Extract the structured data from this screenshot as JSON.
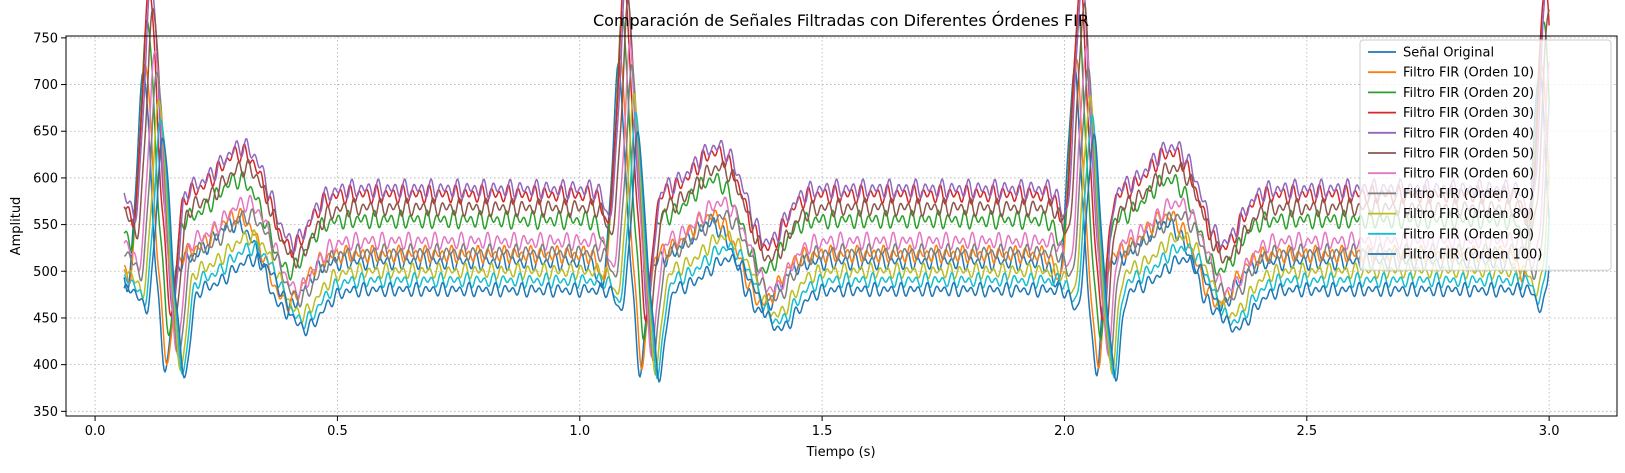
{
  "chart_data": {
    "type": "line",
    "title": "Comparación de Señales Filtradas con Diferentes Órdenes FIR",
    "xlabel": "Tiempo (s)",
    "ylabel": "Amplitud",
    "xlim": [
      -0.06,
      3.14
    ],
    "ylim": [
      345,
      752
    ],
    "xticks": [
      0.0,
      0.5,
      1.0,
      1.5,
      2.0,
      2.5,
      3.0
    ],
    "xtick_labels": [
      "0.0",
      "0.5",
      "1.0",
      "1.5",
      "2.0",
      "2.5",
      "3.0"
    ],
    "yticks": [
      350,
      400,
      450,
      500,
      550,
      600,
      650,
      700,
      750
    ],
    "ytick_labels": [
      "350",
      "400",
      "450",
      "500",
      "550",
      "600",
      "650",
      "700",
      "750"
    ],
    "grid": true,
    "legend_position": "upper-right",
    "x_range": [
      0.06,
      3.0
    ],
    "series": [
      {
        "name": "Señal Original",
        "color": "#1f77b4",
        "offset": 0,
        "scale": 1.0,
        "delay": 0.0
      },
      {
        "name": "Filtro FIR (Orden 10)",
        "color": "#ff7f0e",
        "offset": 8,
        "scale": 1.0,
        "delay": 0.004
      },
      {
        "name": "Filtro FIR (Orden 20)",
        "color": "#2ca02c",
        "offset": 45,
        "scale": 1.05,
        "delay": 0.008
      },
      {
        "name": "Filtro FIR (Orden 30)",
        "color": "#d62728",
        "offset": 72,
        "scale": 1.1,
        "delay": 0.012
      },
      {
        "name": "Filtro FIR (Orden 40)",
        "color": "#9467bd",
        "offset": 78,
        "scale": 1.1,
        "delay": 0.016
      },
      {
        "name": "Filtro FIR (Orden 50)",
        "color": "#8c564b",
        "offset": 58,
        "scale": 1.05,
        "delay": 0.02
      },
      {
        "name": "Filtro FIR (Orden 60)",
        "color": "#e377c2",
        "offset": 22,
        "scale": 1.0,
        "delay": 0.024
      },
      {
        "name": "Filtro FIR (Orden 70)",
        "color": "#7f7f7f",
        "offset": 10,
        "scale": 0.95,
        "delay": 0.028
      },
      {
        "name": "Filtro FIR (Orden 80)",
        "color": "#bcbd22",
        "offset": -10,
        "scale": 0.9,
        "delay": 0.032
      },
      {
        "name": "Filtro FIR (Orden 90)",
        "color": "#17becf",
        "offset": -20,
        "scale": 0.85,
        "delay": 0.036
      },
      {
        "name": "Filtro FIR (Orden 100)",
        "color": "#1f77b4",
        "offset": -30,
        "scale": 0.8,
        "delay": 0.04
      }
    ],
    "beat_times": [
      0.1,
      1.08,
      2.02,
      2.98
    ],
    "baseline": 510
  }
}
